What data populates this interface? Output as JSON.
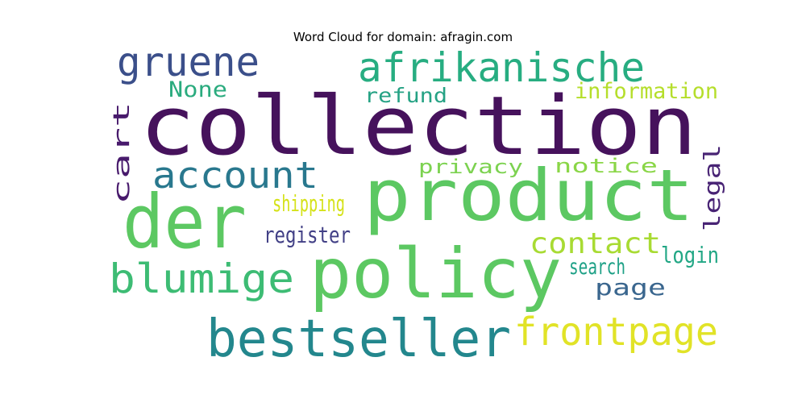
{
  "title": "Word Cloud for domain: afragin.com",
  "words": [
    {
      "text": "collection",
      "color": "#46125c"
    },
    {
      "text": "product",
      "color": "#5cc862"
    },
    {
      "text": "policy",
      "color": "#5cc862"
    },
    {
      "text": "der",
      "color": "#5cc862"
    },
    {
      "text": "bestseller",
      "color": "#23878d"
    },
    {
      "text": "afrikanische",
      "color": "#27ad81"
    },
    {
      "text": "gruene",
      "color": "#3b4f8a"
    },
    {
      "text": "account",
      "color": "#29788e"
    },
    {
      "text": "blumige",
      "color": "#3dbc74"
    },
    {
      "text": "frontpage",
      "color": "#e1e327"
    },
    {
      "text": "contact",
      "color": "#a8db33"
    },
    {
      "text": "None",
      "color": "#2aab7e"
    },
    {
      "text": "refund",
      "color": "#25a284"
    },
    {
      "text": "information",
      "color": "#b5de2b"
    },
    {
      "text": "privacy",
      "color": "#7cd250"
    },
    {
      "text": "notice",
      "color": "#8ad647"
    },
    {
      "text": "shipping",
      "color": "#d5e21a"
    },
    {
      "text": "register",
      "color": "#424086"
    },
    {
      "text": "login",
      "color": "#22a785"
    },
    {
      "text": "search",
      "color": "#1fa187"
    },
    {
      "text": "page",
      "color": "#3a668e"
    },
    {
      "text": "cart",
      "color": "#481a6c"
    },
    {
      "text": "legal",
      "color": "#482374"
    }
  ]
}
